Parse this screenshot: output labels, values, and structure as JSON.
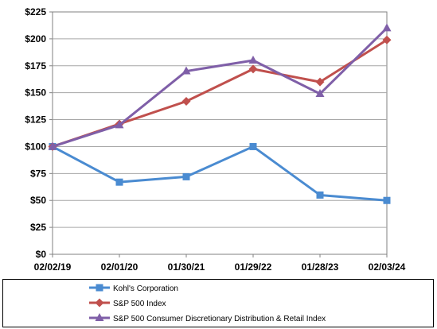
{
  "chart_data": {
    "type": "line",
    "title": "",
    "xlabel": "",
    "ylabel": "",
    "categories": [
      "02/02/19",
      "02/01/20",
      "01/30/21",
      "01/29/22",
      "01/28/23",
      "02/03/24"
    ],
    "y_ticks": [
      "$0",
      "$25",
      "$50",
      "$75",
      "$100",
      "$125",
      "$150",
      "$175",
      "$200",
      "$225"
    ],
    "ylim": [
      0,
      225
    ],
    "y_step": 25,
    "grid": true,
    "legend_position": "bottom",
    "series": [
      {
        "name": "Kohl's Corporation",
        "color": "#4A8BD1",
        "marker": "square",
        "values": [
          100,
          67,
          72,
          100,
          55,
          50
        ]
      },
      {
        "name": "S&P 500 Index",
        "color": "#C0504D",
        "marker": "diamond",
        "values": [
          100,
          121,
          142,
          172,
          160,
          199
        ]
      },
      {
        "name": "S&P 500 Consumer Discretionary Distribution & Retail Index",
        "color": "#7F5FA8",
        "marker": "triangle",
        "values": [
          100,
          120,
          170,
          180,
          149,
          210
        ]
      }
    ]
  }
}
